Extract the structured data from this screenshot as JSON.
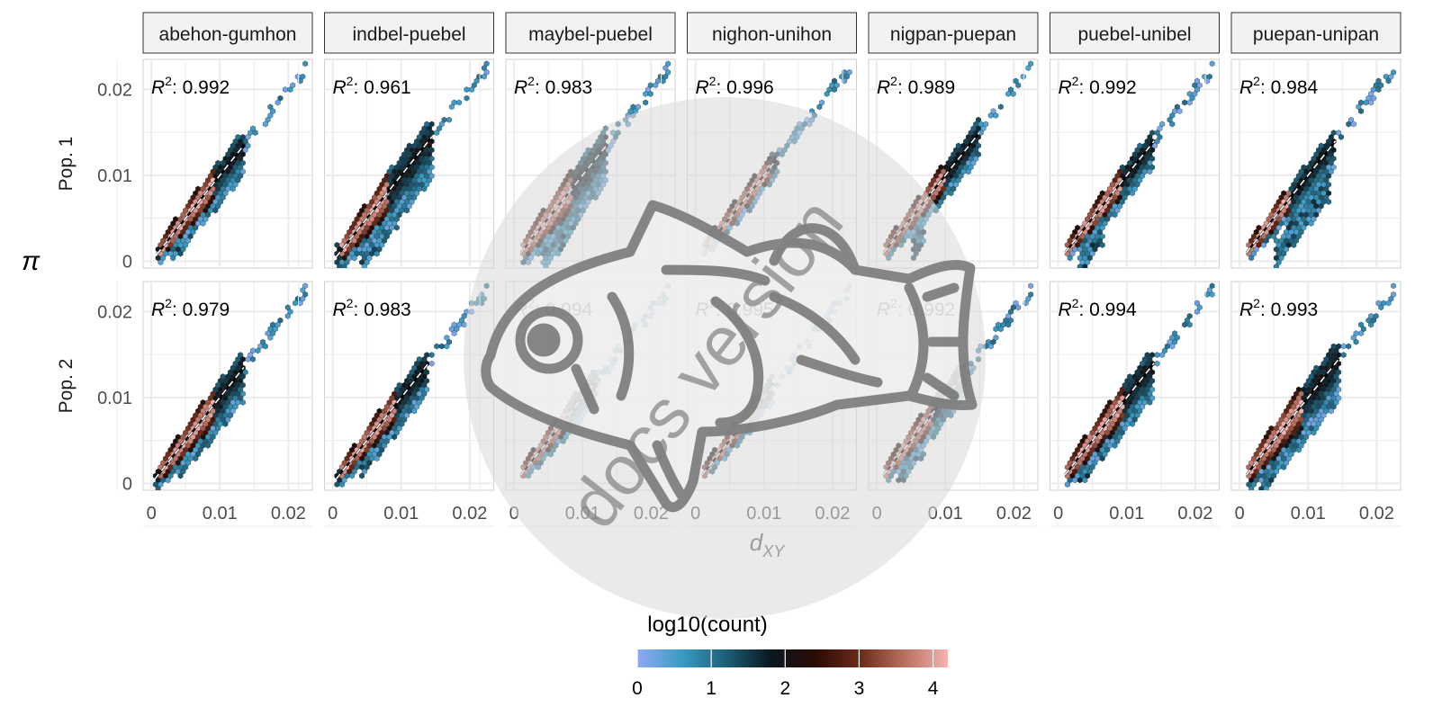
{
  "chart_data": {
    "type": "hexbin-scatter-facets",
    "x_label": "d",
    "x_label_sub": "XY",
    "y_label": "π",
    "columns": [
      "abehon-gumhon",
      "indbel-puebel",
      "maybel-puebel",
      "nighon-unihon",
      "nigpan-puepan",
      "puebel-unibel",
      "puepan-unipan"
    ],
    "rows": [
      "Pop. 1",
      "Pop. 2"
    ],
    "r2_prefix": "R",
    "r2_sup": "2",
    "r2_values": [
      [
        "0.992",
        "0.961",
        "0.983",
        "0.996",
        "0.989",
        "0.992",
        "0.984"
      ],
      [
        "0.979",
        "0.983",
        "0.994",
        "0.995",
        "0.992",
        "0.994",
        "0.993"
      ]
    ],
    "xlim": [
      -0.0012,
      0.0235
    ],
    "ylim": [
      -0.0008,
      0.0235
    ],
    "x_ticks": [
      0,
      0.01,
      0.02
    ],
    "x_tick_labels": [
      "0",
      "0.01",
      "0.02"
    ],
    "y_ticks": [
      0,
      0.01,
      0.02
    ],
    "y_tick_labels": [
      "0",
      "0.01",
      "0.02"
    ],
    "legend": {
      "title": "log10(count)",
      "range": [
        0,
        4.2
      ],
      "ticks": [
        0,
        1,
        2,
        3,
        4
      ],
      "tick_labels": [
        "0",
        "1",
        "2",
        "3",
        "4"
      ],
      "colors": [
        "#8fa9f5",
        "#3a9cc4",
        "#1d5e78",
        "#0a1820",
        "#2a0a04",
        "#6a2a18",
        "#b86e5e",
        "#f6b3b0"
      ]
    },
    "watermark": "docs version",
    "grid": true,
    "panels": [
      [
        {
          "band": 0.0035,
          "x_start": 0.0008,
          "x_end": 0.0135,
          "extra": [
            {
              "x0": 0.003,
              "x1": 0.006,
              "dy": -0.0018
            }
          ],
          "dense": [
            0.001,
            0.009
          ]
        },
        {
          "band": 0.005,
          "x_start": 0.0005,
          "x_end": 0.0145,
          "extra": [
            {
              "x0": 0.004,
              "x1": 0.0095,
              "dy": -0.004
            }
          ],
          "dense": [
            0.001,
            0.008
          ]
        },
        {
          "band": 0.0045,
          "x_start": 0.001,
          "x_end": 0.0135,
          "extra": [
            {
              "x0": 0.004,
              "x1": 0.009,
              "dy": -0.004
            }
          ],
          "dense": [
            0.001,
            0.0085
          ]
        },
        {
          "band": 0.002,
          "x_start": 0.001,
          "x_end": 0.012,
          "extra": [],
          "dense": [
            0.001,
            0.011
          ]
        },
        {
          "band": 0.003,
          "x_start": 0.001,
          "x_end": 0.015,
          "extra": [
            {
              "x0": 0.005,
              "x1": 0.007,
              "dy": -0.0035
            }
          ],
          "dense": [
            0.001,
            0.01
          ]
        },
        {
          "band": 0.003,
          "x_start": 0.001,
          "x_end": 0.014,
          "extra": [
            {
              "x0": 0.003,
              "x1": 0.0065,
              "dy": -0.003
            }
          ],
          "dense": [
            0.001,
            0.009
          ]
        },
        {
          "band": 0.003,
          "x_start": 0.001,
          "x_end": 0.014,
          "extra": [
            {
              "x0": 0.005,
              "x1": 0.013,
              "dy": -0.0045
            }
          ],
          "dense": [
            0.001,
            0.0075
          ]
        }
      ],
      [
        {
          "band": 0.004,
          "x_start": 0.0005,
          "x_end": 0.0135,
          "extra": [
            {
              "x0": 0.004,
              "x1": 0.0085,
              "dy": -0.002
            }
          ],
          "dense": [
            0.001,
            0.009
          ]
        },
        {
          "band": 0.0035,
          "x_start": 0.0005,
          "x_end": 0.014,
          "extra": [
            {
              "x0": 0.004,
              "x1": 0.009,
              "dy": -0.002
            }
          ],
          "dense": [
            0.001,
            0.009
          ]
        },
        {
          "band": 0.0025,
          "x_start": 0.001,
          "x_end": 0.012,
          "extra": [],
          "dense": [
            0.001,
            0.008
          ]
        },
        {
          "band": 0.002,
          "x_start": 0.001,
          "x_end": 0.0115,
          "extra": [],
          "dense": [
            0.001,
            0.009
          ]
        },
        {
          "band": 0.003,
          "x_start": 0.001,
          "x_end": 0.013,
          "extra": [
            {
              "x0": 0.003,
              "x1": 0.007,
              "dy": -0.002
            }
          ],
          "dense": [
            0.001,
            0.008
          ]
        },
        {
          "band": 0.004,
          "x_start": 0.001,
          "x_end": 0.014,
          "extra": [
            {
              "x0": 0.003,
              "x1": 0.0085,
              "dy": -0.002
            }
          ],
          "dense": [
            0.001,
            0.0095
          ]
        },
        {
          "band": 0.005,
          "x_start": 0.001,
          "x_end": 0.0145,
          "extra": [
            {
              "x0": 0.003,
              "x1": 0.0095,
              "dy": -0.003
            }
          ],
          "dense": [
            0.001,
            0.009
          ]
        }
      ]
    ]
  }
}
